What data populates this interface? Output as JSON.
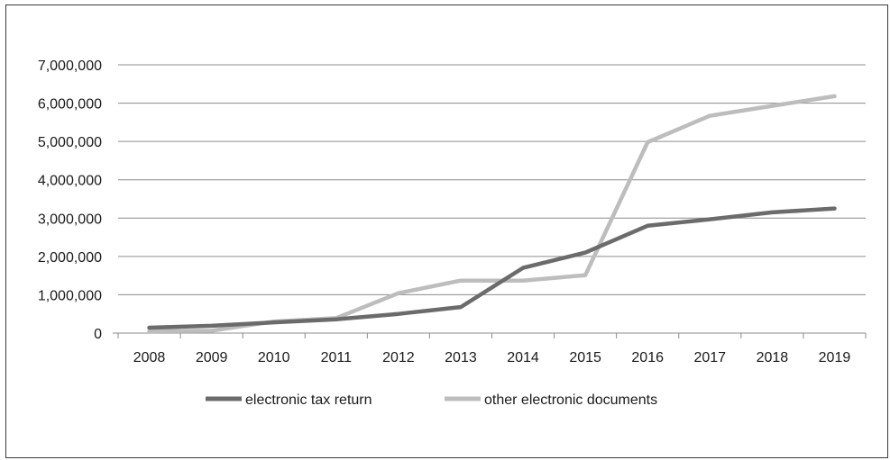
{
  "chart_data": {
    "type": "line",
    "categories": [
      "2008",
      "2009",
      "2010",
      "2011",
      "2012",
      "2013",
      "2014",
      "2015",
      "2016",
      "2017",
      "2018",
      "2019"
    ],
    "ylim": [
      0,
      7000000
    ],
    "yticks": [
      0,
      1000000,
      2000000,
      3000000,
      4000000,
      5000000,
      6000000,
      7000000
    ],
    "ytick_labels": [
      "0",
      "1,000,000",
      "2,000,000",
      "3,000,000",
      "4,000,000",
      "5,000,000",
      "6,000,000",
      "7,000,000"
    ],
    "grid": "horizontal",
    "legend_position": "bottom",
    "series": [
      {
        "name": "electronic tax return",
        "color": "#6b6b6b",
        "values": [
          140000,
          190000,
          280000,
          360000,
          500000,
          680000,
          1700000,
          2100000,
          2800000,
          2970000,
          3150000,
          3250000
        ]
      },
      {
        "name": "other electronic documents",
        "color": "#bdbdbd",
        "values": [
          50000,
          60000,
          300000,
          390000,
          1040000,
          1370000,
          1370000,
          1510000,
          4980000,
          5670000,
          5930000,
          6180000
        ]
      }
    ]
  }
}
